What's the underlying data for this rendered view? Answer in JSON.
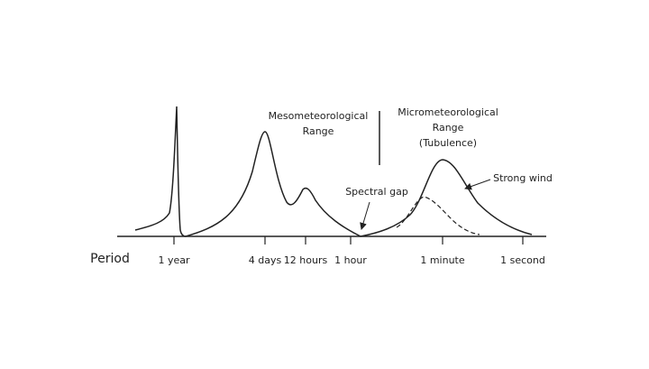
{
  "regions": [
    {
      "lines": [
        "Mesometeorological",
        "Range"
      ]
    },
    {
      "lines": [
        "Micrometeorological",
        "Range",
        "(Tubulence)"
      ]
    }
  ],
  "annotations": {
    "spectral_gap": "Spectral gap",
    "strong_wind": "Strong wind"
  },
  "axis": {
    "label": "Period",
    "ticks": [
      "1 year",
      "4 days",
      "12 hours",
      "1 hour",
      "1 minute",
      "1 second"
    ]
  }
}
